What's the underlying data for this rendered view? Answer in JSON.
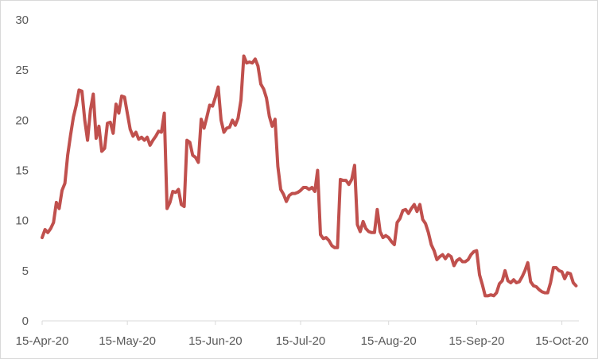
{
  "chart_data": {
    "type": "line",
    "title": "",
    "xlabel": "",
    "ylabel": "",
    "ylim": [
      0,
      30
    ],
    "y_ticks": [
      0,
      5,
      10,
      15,
      20,
      25,
      30
    ],
    "x_ticks": [
      "15-Apr-20",
      "15-May-20",
      "15-Jun-20",
      "15-Jul-20",
      "15-Aug-20",
      "15-Sep-20",
      "15-Oct-20"
    ],
    "x_range": [
      "2020-04-15",
      "2020-10-21"
    ],
    "grid": false,
    "legend": "none",
    "series": [
      {
        "color": "#c0504d",
        "points": [
          [
            "2020-04-15",
            8.3
          ],
          [
            "2020-04-16",
            9.1
          ],
          [
            "2020-04-17",
            8.8
          ],
          [
            "2020-04-18",
            9.2
          ],
          [
            "2020-04-19",
            9.8
          ],
          [
            "2020-04-20",
            11.8
          ],
          [
            "2020-04-21",
            11.2
          ],
          [
            "2020-04-22",
            13.0
          ],
          [
            "2020-04-23",
            13.7
          ],
          [
            "2020-04-24",
            16.5
          ],
          [
            "2020-04-25",
            18.5
          ],
          [
            "2020-04-26",
            20.3
          ],
          [
            "2020-04-27",
            21.5
          ],
          [
            "2020-04-28",
            23.0
          ],
          [
            "2020-04-29",
            22.9
          ],
          [
            "2020-04-30",
            20.0
          ],
          [
            "2020-05-01",
            18.0
          ],
          [
            "2020-05-02",
            21.0
          ],
          [
            "2020-05-03",
            22.6
          ],
          [
            "2020-05-04",
            18.2
          ],
          [
            "2020-05-05",
            19.4
          ],
          [
            "2020-05-06",
            16.9
          ],
          [
            "2020-05-07",
            17.2
          ],
          [
            "2020-05-08",
            19.7
          ],
          [
            "2020-05-09",
            19.8
          ],
          [
            "2020-05-10",
            18.7
          ],
          [
            "2020-05-11",
            21.6
          ],
          [
            "2020-05-12",
            20.7
          ],
          [
            "2020-05-13",
            22.4
          ],
          [
            "2020-05-14",
            22.3
          ],
          [
            "2020-05-15",
            20.7
          ],
          [
            "2020-05-16",
            19.1
          ],
          [
            "2020-05-17",
            18.4
          ],
          [
            "2020-05-18",
            18.8
          ],
          [
            "2020-05-19",
            18.1
          ],
          [
            "2020-05-20",
            18.3
          ],
          [
            "2020-05-21",
            18.0
          ],
          [
            "2020-05-22",
            18.3
          ],
          [
            "2020-05-23",
            17.5
          ],
          [
            "2020-05-24",
            18.0
          ],
          [
            "2020-05-25",
            18.4
          ],
          [
            "2020-05-26",
            18.9
          ],
          [
            "2020-05-27",
            18.8
          ],
          [
            "2020-05-28",
            20.7
          ],
          [
            "2020-05-29",
            11.2
          ],
          [
            "2020-05-30",
            11.8
          ],
          [
            "2020-05-31",
            12.9
          ],
          [
            "2020-06-01",
            12.8
          ],
          [
            "2020-06-02",
            13.1
          ],
          [
            "2020-06-03",
            11.6
          ],
          [
            "2020-06-04",
            11.4
          ],
          [
            "2020-06-05",
            18.0
          ],
          [
            "2020-06-06",
            17.8
          ],
          [
            "2020-06-07",
            16.5
          ],
          [
            "2020-06-08",
            16.3
          ],
          [
            "2020-06-09",
            15.8
          ],
          [
            "2020-06-10",
            20.1
          ],
          [
            "2020-06-11",
            19.2
          ],
          [
            "2020-06-12",
            20.3
          ],
          [
            "2020-06-13",
            21.5
          ],
          [
            "2020-06-14",
            21.4
          ],
          [
            "2020-06-15",
            22.3
          ],
          [
            "2020-06-16",
            23.3
          ],
          [
            "2020-06-17",
            20.0
          ],
          [
            "2020-06-18",
            18.8
          ],
          [
            "2020-06-19",
            19.2
          ],
          [
            "2020-06-20",
            19.3
          ],
          [
            "2020-06-21",
            20.0
          ],
          [
            "2020-06-22",
            19.5
          ],
          [
            "2020-06-23",
            20.2
          ],
          [
            "2020-06-24",
            22.0
          ],
          [
            "2020-06-25",
            26.4
          ],
          [
            "2020-06-26",
            25.7
          ],
          [
            "2020-06-27",
            25.8
          ],
          [
            "2020-06-28",
            25.7
          ],
          [
            "2020-06-29",
            26.1
          ],
          [
            "2020-06-30",
            25.4
          ],
          [
            "2020-07-01",
            23.6
          ],
          [
            "2020-07-02",
            23.1
          ],
          [
            "2020-07-03",
            22.2
          ],
          [
            "2020-07-04",
            20.4
          ],
          [
            "2020-07-05",
            19.4
          ],
          [
            "2020-07-06",
            20.1
          ],
          [
            "2020-07-07",
            15.4
          ],
          [
            "2020-07-08",
            13.1
          ],
          [
            "2020-07-09",
            12.6
          ],
          [
            "2020-07-10",
            11.9
          ],
          [
            "2020-07-11",
            12.5
          ],
          [
            "2020-07-12",
            12.7
          ],
          [
            "2020-07-13",
            12.7
          ],
          [
            "2020-07-14",
            12.8
          ],
          [
            "2020-07-15",
            13.0
          ],
          [
            "2020-07-16",
            13.3
          ],
          [
            "2020-07-17",
            13.3
          ],
          [
            "2020-07-18",
            13.1
          ],
          [
            "2020-07-19",
            13.3
          ],
          [
            "2020-07-20",
            12.9
          ],
          [
            "2020-07-21",
            15.0
          ],
          [
            "2020-07-22",
            8.6
          ],
          [
            "2020-07-23",
            8.2
          ],
          [
            "2020-07-24",
            8.3
          ],
          [
            "2020-07-25",
            8.0
          ],
          [
            "2020-07-26",
            7.5
          ],
          [
            "2020-07-27",
            7.3
          ],
          [
            "2020-07-28",
            7.3
          ],
          [
            "2020-07-29",
            14.1
          ],
          [
            "2020-07-30",
            14.0
          ],
          [
            "2020-07-31",
            14.0
          ],
          [
            "2020-08-01",
            13.6
          ],
          [
            "2020-08-02",
            14.1
          ],
          [
            "2020-08-03",
            15.5
          ],
          [
            "2020-08-04",
            9.6
          ],
          [
            "2020-08-05",
            8.9
          ],
          [
            "2020-08-06",
            9.9
          ],
          [
            "2020-08-07",
            9.2
          ],
          [
            "2020-08-08",
            8.9
          ],
          [
            "2020-08-09",
            8.8
          ],
          [
            "2020-08-10",
            8.8
          ],
          [
            "2020-08-11",
            11.1
          ],
          [
            "2020-08-12",
            8.9
          ],
          [
            "2020-08-13",
            8.3
          ],
          [
            "2020-08-14",
            8.5
          ],
          [
            "2020-08-15",
            8.3
          ],
          [
            "2020-08-16",
            7.9
          ],
          [
            "2020-08-17",
            7.6
          ],
          [
            "2020-08-18",
            9.8
          ],
          [
            "2020-08-19",
            10.2
          ],
          [
            "2020-08-20",
            11.0
          ],
          [
            "2020-08-21",
            11.1
          ],
          [
            "2020-08-22",
            10.7
          ],
          [
            "2020-08-23",
            11.2
          ],
          [
            "2020-08-24",
            11.6
          ],
          [
            "2020-08-25",
            10.9
          ],
          [
            "2020-08-26",
            11.6
          ],
          [
            "2020-08-27",
            10.1
          ],
          [
            "2020-08-28",
            9.7
          ],
          [
            "2020-08-29",
            8.8
          ],
          [
            "2020-08-30",
            7.6
          ],
          [
            "2020-08-31",
            7.0
          ],
          [
            "2020-09-01",
            6.1
          ],
          [
            "2020-09-02",
            6.4
          ],
          [
            "2020-09-03",
            6.6
          ],
          [
            "2020-09-04",
            6.2
          ],
          [
            "2020-09-05",
            6.6
          ],
          [
            "2020-09-06",
            6.4
          ],
          [
            "2020-09-07",
            5.5
          ],
          [
            "2020-09-08",
            6.0
          ],
          [
            "2020-09-09",
            6.2
          ],
          [
            "2020-09-10",
            5.9
          ],
          [
            "2020-09-11",
            5.9
          ],
          [
            "2020-09-12",
            6.1
          ],
          [
            "2020-09-13",
            6.6
          ],
          [
            "2020-09-14",
            6.9
          ],
          [
            "2020-09-15",
            7.0
          ],
          [
            "2020-09-16",
            4.6
          ],
          [
            "2020-09-17",
            3.6
          ],
          [
            "2020-09-18",
            2.5
          ],
          [
            "2020-09-19",
            2.5
          ],
          [
            "2020-09-20",
            2.6
          ],
          [
            "2020-09-21",
            2.5
          ],
          [
            "2020-09-22",
            2.8
          ],
          [
            "2020-09-23",
            3.7
          ],
          [
            "2020-09-24",
            4.0
          ],
          [
            "2020-09-25",
            5.0
          ],
          [
            "2020-09-26",
            4.0
          ],
          [
            "2020-09-27",
            3.8
          ],
          [
            "2020-09-28",
            4.1
          ],
          [
            "2020-09-29",
            3.8
          ],
          [
            "2020-09-30",
            3.9
          ],
          [
            "2020-10-01",
            4.4
          ],
          [
            "2020-10-02",
            5.0
          ],
          [
            "2020-10-03",
            5.8
          ],
          [
            "2020-10-04",
            3.9
          ],
          [
            "2020-10-05",
            3.5
          ],
          [
            "2020-10-06",
            3.4
          ],
          [
            "2020-10-07",
            3.1
          ],
          [
            "2020-10-08",
            2.9
          ],
          [
            "2020-10-09",
            2.8
          ],
          [
            "2020-10-10",
            2.8
          ],
          [
            "2020-10-11",
            3.8
          ],
          [
            "2020-10-12",
            5.3
          ],
          [
            "2020-10-13",
            5.3
          ],
          [
            "2020-10-14",
            5.0
          ],
          [
            "2020-10-15",
            4.9
          ],
          [
            "2020-10-16",
            4.2
          ],
          [
            "2020-10-17",
            4.8
          ],
          [
            "2020-10-18",
            4.7
          ],
          [
            "2020-10-19",
            3.8
          ],
          [
            "2020-10-20",
            3.5
          ]
        ]
      }
    ]
  }
}
